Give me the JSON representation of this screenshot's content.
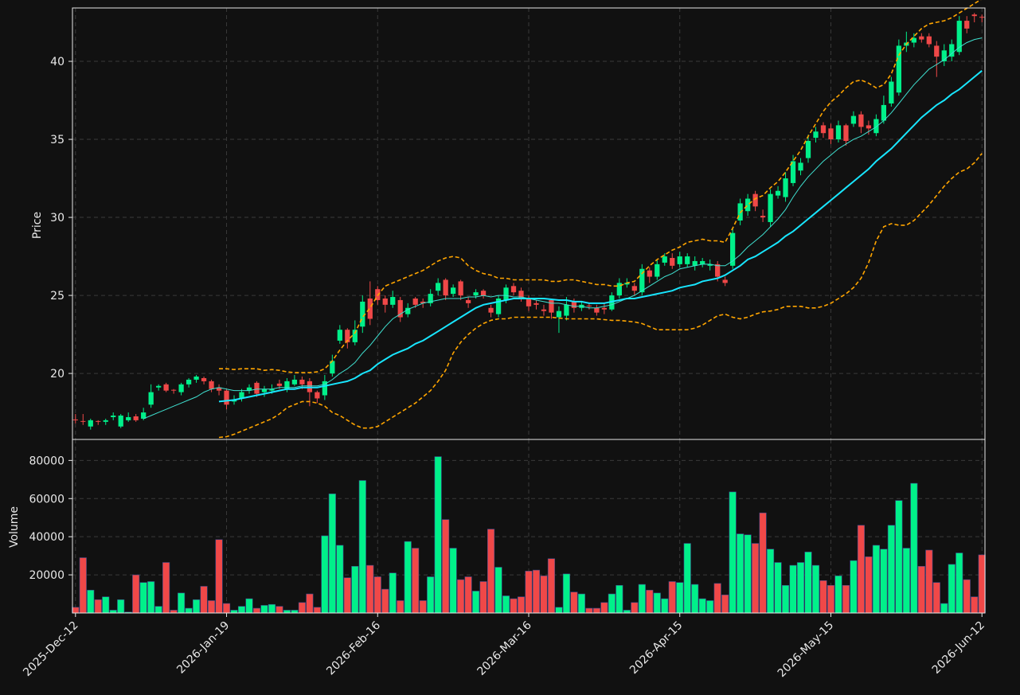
{
  "chart_data": [
    {
      "type": "candlestick",
      "ylabel": "Price",
      "ylim": [
        15.77,
        43.42
      ],
      "yticks": [
        20,
        25,
        30,
        35,
        40
      ],
      "grid": true,
      "up_color": "#00f08a",
      "down_color": "#f04848",
      "open": [
        17.05,
        16.95,
        16.6,
        16.95,
        16.9,
        17.2,
        16.6,
        17.0,
        17.25,
        17.1,
        18.0,
        19.1,
        19.3,
        18.95,
        18.8,
        19.3,
        19.6,
        19.7,
        19.5,
        19.1,
        18.9,
        18.2,
        18.4,
        18.9,
        19.4,
        18.8,
        18.9,
        19.35,
        19.0,
        19.3,
        19.6,
        19.5,
        18.8,
        18.6,
        20.0,
        22.1,
        22.8,
        22.0,
        23.0,
        24.8,
        25.4,
        24.8,
        24.4,
        24.7,
        23.8,
        24.8,
        24.6,
        24.5,
        25.3,
        26.0,
        25.1,
        25.9,
        24.7,
        25.0,
        25.3,
        24.2,
        23.8,
        24.7,
        25.6,
        25.3,
        24.8,
        24.5,
        24.1,
        24.7,
        23.6,
        23.7,
        24.6,
        24.2,
        24.35,
        24.2,
        24.2,
        24.1,
        25.0,
        25.7,
        25.6,
        25.2,
        26.6,
        26.2,
        27.1,
        27.4,
        27.0,
        27.0,
        26.9,
        27.0,
        26.9,
        27.0,
        26.0,
        26.9,
        29.8,
        30.4,
        31.5,
        30.1,
        29.7,
        31.4,
        31.3,
        32.2,
        33.0,
        33.8,
        35.1,
        35.9,
        35.7,
        35.0,
        35.9,
        36.0,
        36.6,
        35.9,
        35.4,
        36.2,
        37.3,
        38.0,
        41.0,
        41.2,
        41.6,
        41.6,
        41.0,
        40.0,
        40.3,
        40.6,
        42.6,
        43.0,
        42.85
      ],
      "high": [
        17.4,
        17.4,
        17.1,
        17.0,
        17.1,
        17.5,
        17.4,
        17.5,
        17.4,
        17.8,
        19.3,
        19.3,
        19.4,
        19.0,
        19.4,
        19.7,
        19.9,
        19.8,
        19.6,
        19.3,
        19.0,
        18.6,
        19.0,
        19.3,
        19.5,
        19.2,
        19.3,
        19.6,
        19.7,
        19.9,
        19.8,
        19.7,
        18.9,
        19.9,
        21.2,
        23.1,
        22.9,
        23.4,
        25.0,
        25.9,
        25.6,
        25.0,
        25.3,
        24.9,
        24.5,
        24.9,
        24.8,
        25.4,
        26.1,
        26.1,
        25.7,
        26.0,
        24.9,
        25.4,
        25.4,
        24.4,
        25.0,
        25.7,
        25.8,
        25.5,
        25.0,
        24.7,
        24.4,
        24.8,
        24.3,
        24.9,
        24.8,
        24.6,
        24.5,
        24.4,
        24.5,
        25.2,
        26.1,
        26.1,
        25.8,
        27.0,
        26.8,
        27.3,
        27.7,
        27.7,
        27.8,
        27.7,
        27.5,
        27.4,
        27.3,
        27.2,
        26.2,
        29.3,
        31.2,
        31.5,
        31.7,
        30.5,
        31.8,
        32.0,
        32.9,
        34.0,
        33.8,
        35.3,
        35.8,
        36.1,
        36.0,
        36.2,
        36.0,
        36.8,
        36.8,
        36.2,
        36.6,
        37.8,
        39.0,
        41.4,
        41.9,
        41.8,
        41.8,
        41.8,
        41.3,
        41.1,
        41.4,
        42.9,
        42.9,
        43.1,
        43.0
      ],
      "low": [
        16.8,
        16.7,
        16.4,
        16.7,
        16.7,
        17.0,
        16.5,
        16.9,
        16.9,
        17.0,
        17.8,
        18.9,
        18.8,
        18.7,
        18.6,
        19.1,
        19.4,
        19.3,
        18.8,
        18.6,
        17.7,
        18.0,
        18.2,
        18.7,
        18.5,
        18.5,
        18.7,
        19.0,
        18.8,
        19.2,
        19.0,
        17.9,
        18.1,
        18.3,
        19.8,
        21.9,
        21.6,
        21.8,
        22.6,
        23.1,
        24.4,
        23.9,
        24.2,
        23.3,
        23.6,
        24.2,
        24.2,
        24.3,
        25.0,
        24.7,
        24.9,
        24.7,
        24.2,
        24.8,
        24.8,
        23.6,
        23.6,
        24.5,
        25.0,
        24.6,
        24.0,
        24.1,
        23.7,
        23.5,
        22.6,
        23.4,
        23.9,
        24.0,
        24.1,
        23.7,
        23.8,
        24.0,
        24.8,
        25.5,
        25.0,
        25.0,
        25.8,
        26.0,
        26.9,
        26.7,
        26.8,
        26.8,
        26.6,
        26.8,
        26.6,
        25.9,
        25.6,
        26.7,
        29.5,
        30.1,
        30.4,
        29.7,
        29.4,
        31.2,
        31.0,
        32.0,
        32.7,
        33.5,
        34.8,
        35.1,
        34.7,
        34.8,
        34.6,
        35.8,
        35.4,
        35.3,
        35.2,
        36.0,
        37.1,
        37.8,
        40.6,
        40.9,
        41.2,
        40.9,
        39.0,
        39.7,
        40.0,
        40.4,
        41.8,
        42.5,
        42.5
      ],
      "close": [
        17.0,
        16.9,
        17.0,
        16.9,
        17.0,
        17.3,
        17.3,
        17.2,
        17.0,
        17.5,
        18.8,
        19.2,
        18.9,
        18.9,
        19.3,
        19.6,
        19.8,
        19.5,
        19.0,
        18.9,
        18.0,
        18.3,
        18.8,
        19.1,
        18.7,
        19.0,
        19.0,
        19.2,
        19.5,
        19.6,
        19.3,
        18.8,
        18.4,
        19.5,
        20.8,
        22.8,
        22.0,
        22.8,
        24.6,
        23.5,
        24.7,
        24.4,
        24.9,
        23.6,
        24.2,
        24.4,
        24.5,
        25.1,
        25.8,
        25.0,
        25.5,
        25.0,
        24.5,
        25.2,
        25.0,
        23.9,
        24.8,
        25.5,
        25.2,
        24.8,
        24.3,
        24.4,
        24.0,
        23.9,
        24.0,
        24.4,
        24.2,
        24.4,
        24.3,
        23.9,
        24.1,
        25.0,
        25.8,
        25.8,
        25.3,
        26.7,
        26.2,
        27.0,
        27.5,
        26.9,
        27.5,
        27.5,
        27.2,
        27.2,
        27.0,
        26.2,
        25.8,
        29.0,
        30.9,
        31.2,
        30.7,
        30.0,
        31.5,
        31.7,
        32.5,
        33.6,
        33.5,
        34.9,
        35.5,
        35.4,
        35.0,
        35.9,
        34.9,
        36.5,
        35.8,
        35.7,
        36.3,
        37.2,
        38.7,
        41.0,
        41.2,
        41.5,
        41.4,
        41.1,
        40.3,
        40.7,
        41.1,
        42.6,
        42.1,
        42.9,
        42.8
      ],
      "lines": [
        {
          "color": "#3fe0d0",
          "width": 1,
          "dash": false,
          "values": [
            null,
            null,
            null,
            null,
            null,
            null,
            null,
            null,
            null,
            17.1,
            17.3,
            17.5,
            17.7,
            17.9,
            18.1,
            18.3,
            18.5,
            18.8,
            19.0,
            19.1,
            19.0,
            18.9,
            18.9,
            18.9,
            19.0,
            19.0,
            19.0,
            19.1,
            19.1,
            19.1,
            19.2,
            19.2,
            19.2,
            19.3,
            19.6,
            20.0,
            20.3,
            20.7,
            21.3,
            21.8,
            22.4,
            23.0,
            23.5,
            23.8,
            24.1,
            24.3,
            24.5,
            24.6,
            24.7,
            24.8,
            24.8,
            24.8,
            24.9,
            24.9,
            25.0,
            24.9,
            25.0,
            25.0,
            24.9,
            24.9,
            24.8,
            24.7,
            24.6,
            24.5,
            24.5,
            24.4,
            24.3,
            24.3,
            24.2,
            24.2,
            24.3,
            24.4,
            24.6,
            24.8,
            25.0,
            25.3,
            25.6,
            25.9,
            26.2,
            26.4,
            26.7,
            26.8,
            26.9,
            27.0,
            27.0,
            26.9,
            26.9,
            27.2,
            27.6,
            28.1,
            28.5,
            28.9,
            29.4,
            29.9,
            30.5,
            31.3,
            32.0,
            32.6,
            33.1,
            33.6,
            34.0,
            34.4,
            34.7,
            35.0,
            35.2,
            35.5,
            35.8,
            36.2,
            36.7,
            37.3,
            37.9,
            38.5,
            39.0,
            39.5,
            39.8,
            40.1,
            40.5,
            40.9,
            41.2,
            41.4,
            41.5
          ]
        },
        {
          "color": "#18e6ff",
          "width": 2,
          "dash": false,
          "values": [
            null,
            null,
            null,
            null,
            null,
            null,
            null,
            null,
            null,
            null,
            null,
            null,
            null,
            null,
            null,
            null,
            null,
            null,
            null,
            18.2,
            18.25,
            18.3,
            18.4,
            18.5,
            18.6,
            18.7,
            18.8,
            18.9,
            19.0,
            19.0,
            19.1,
            19.1,
            19.1,
            19.2,
            19.3,
            19.4,
            19.5,
            19.7,
            20.0,
            20.2,
            20.6,
            20.9,
            21.2,
            21.4,
            21.6,
            21.9,
            22.1,
            22.4,
            22.7,
            23.0,
            23.3,
            23.6,
            23.9,
            24.2,
            24.4,
            24.5,
            24.6,
            24.7,
            24.8,
            24.8,
            24.8,
            24.8,
            24.8,
            24.75,
            24.7,
            24.7,
            24.6,
            24.6,
            24.5,
            24.5,
            24.5,
            24.6,
            24.7,
            24.8,
            24.8,
            24.9,
            25.0,
            25.1,
            25.2,
            25.3,
            25.5,
            25.6,
            25.7,
            25.9,
            26.0,
            26.1,
            26.3,
            26.6,
            26.9,
            27.3,
            27.5,
            27.8,
            28.1,
            28.4,
            28.8,
            29.1,
            29.5,
            29.9,
            30.3,
            30.7,
            31.1,
            31.5,
            31.9,
            32.3,
            32.7,
            33.1,
            33.6,
            34.0,
            34.4,
            34.9,
            35.4,
            35.9,
            36.4,
            36.8,
            37.2,
            37.5,
            37.9,
            38.2,
            38.6,
            39.0,
            39.4
          ]
        },
        {
          "color": "#ffa500",
          "width": 1.6,
          "dash": true,
          "values": [
            null,
            null,
            null,
            null,
            null,
            null,
            null,
            null,
            null,
            null,
            null,
            null,
            null,
            null,
            null,
            null,
            null,
            null,
            null,
            20.3,
            20.3,
            20.25,
            20.3,
            20.3,
            20.3,
            20.2,
            20.25,
            20.2,
            20.1,
            20.05,
            20.05,
            20.05,
            20.1,
            20.3,
            20.8,
            21.5,
            22.1,
            22.6,
            23.6,
            24.2,
            25.0,
            25.6,
            25.8,
            26.0,
            26.2,
            26.4,
            26.6,
            26.9,
            27.2,
            27.4,
            27.5,
            27.4,
            26.9,
            26.6,
            26.4,
            26.3,
            26.1,
            26.1,
            26.0,
            26.0,
            26.0,
            26.0,
            26.0,
            25.9,
            25.9,
            26.0,
            26.0,
            25.9,
            25.8,
            25.7,
            25.7,
            25.6,
            25.6,
            25.8,
            25.9,
            26.4,
            26.9,
            27.3,
            27.6,
            27.9,
            28.1,
            28.4,
            28.5,
            28.6,
            28.5,
            28.5,
            28.4,
            29.3,
            30.3,
            30.8,
            31.2,
            31.4,
            31.9,
            32.3,
            32.9,
            33.6,
            34.3,
            35.2,
            36.0,
            36.8,
            37.4,
            37.8,
            38.3,
            38.7,
            38.8,
            38.6,
            38.3,
            38.5,
            39.2,
            40.4,
            41.1,
            41.6,
            42.1,
            42.4,
            42.5,
            42.6,
            42.8,
            43.1,
            43.4,
            43.7,
            44.0
          ]
        },
        {
          "color": "#ffa500",
          "width": 1.6,
          "dash": true,
          "values": [
            null,
            null,
            null,
            null,
            null,
            null,
            null,
            null,
            null,
            null,
            null,
            null,
            null,
            null,
            null,
            null,
            null,
            null,
            null,
            15.9,
            15.95,
            16.1,
            16.3,
            16.5,
            16.7,
            16.9,
            17.1,
            17.4,
            17.8,
            18.0,
            18.2,
            18.2,
            18.1,
            17.9,
            17.5,
            17.3,
            17.0,
            16.7,
            16.5,
            16.5,
            16.6,
            16.9,
            17.2,
            17.5,
            17.8,
            18.1,
            18.5,
            18.9,
            19.5,
            20.2,
            21.3,
            22.0,
            22.5,
            22.9,
            23.2,
            23.4,
            23.5,
            23.5,
            23.6,
            23.6,
            23.6,
            23.6,
            23.6,
            23.6,
            23.55,
            23.5,
            23.5,
            23.5,
            23.5,
            23.5,
            23.45,
            23.4,
            23.4,
            23.35,
            23.3,
            23.2,
            23.0,
            22.8,
            22.8,
            22.8,
            22.8,
            22.8,
            22.9,
            23.1,
            23.4,
            23.7,
            23.8,
            23.6,
            23.5,
            23.6,
            23.8,
            23.95,
            24.0,
            24.1,
            24.3,
            24.3,
            24.3,
            24.2,
            24.2,
            24.3,
            24.5,
            24.8,
            25.1,
            25.5,
            26.1,
            27.1,
            28.5,
            29.4,
            29.6,
            29.5,
            29.5,
            29.8,
            30.3,
            30.8,
            31.4,
            32.0,
            32.5,
            32.9,
            33.1,
            33.5,
            34.1
          ]
        }
      ]
    },
    {
      "type": "bar",
      "ylabel": "Volume",
      "ylim": [
        0,
        91000
      ],
      "yticks": [
        20000,
        40000,
        60000,
        80000
      ],
      "grid": true,
      "xlim": [
        -0.4,
        120.4
      ],
      "xticks": [
        {
          "value": 0,
          "label": "2025-Dec-12"
        },
        {
          "value": 20,
          "label": "2026-Jan-19"
        },
        {
          "value": 40,
          "label": "2026-Feb-16"
        },
        {
          "value": 60,
          "label": "2026-Mar-16"
        },
        {
          "value": 80,
          "label": "2026-Apr-15"
        },
        {
          "value": 100,
          "label": "2026-May-15"
        },
        {
          "value": 120,
          "label": "2026-Jun-12"
        }
      ],
      "values": [
        3000,
        29000,
        12000,
        7000,
        8500,
        1500,
        7000,
        500,
        20000,
        16000,
        16500,
        3500,
        26500,
        1500,
        10500,
        2500,
        7000,
        14000,
        6500,
        38500,
        5000,
        1500,
        3500,
        7500,
        2500,
        4000,
        4500,
        3500,
        1500,
        1500,
        5500,
        10000,
        3000,
        40500,
        62500,
        35500,
        18500,
        24500,
        69500,
        25000,
        19000,
        12500,
        21000,
        6500,
        37500,
        34000,
        6500,
        19000,
        82000,
        49000,
        34000,
        17500,
        19000,
        11500,
        16500,
        44000,
        24000,
        9000,
        7500,
        8500,
        22000,
        22500,
        19500,
        28500,
        3000,
        20500,
        11000,
        10000,
        2500,
        2500,
        5500,
        10000,
        14500,
        1500,
        5500,
        15000,
        12000,
        10500,
        7500,
        16500,
        16000,
        36500,
        15000,
        7500,
        6500,
        15500,
        9500,
        63500,
        41500,
        41000,
        36500,
        52500,
        33500,
        26500,
        14500,
        25000,
        26500,
        32000,
        25000,
        17000,
        14500,
        19500,
        14500,
        27500,
        46000,
        29500,
        35500,
        33500,
        46000,
        59000,
        34000,
        68000,
        24500,
        33000,
        16000,
        5000,
        25500,
        31500,
        17500,
        8500,
        30500
      ]
    }
  ]
}
